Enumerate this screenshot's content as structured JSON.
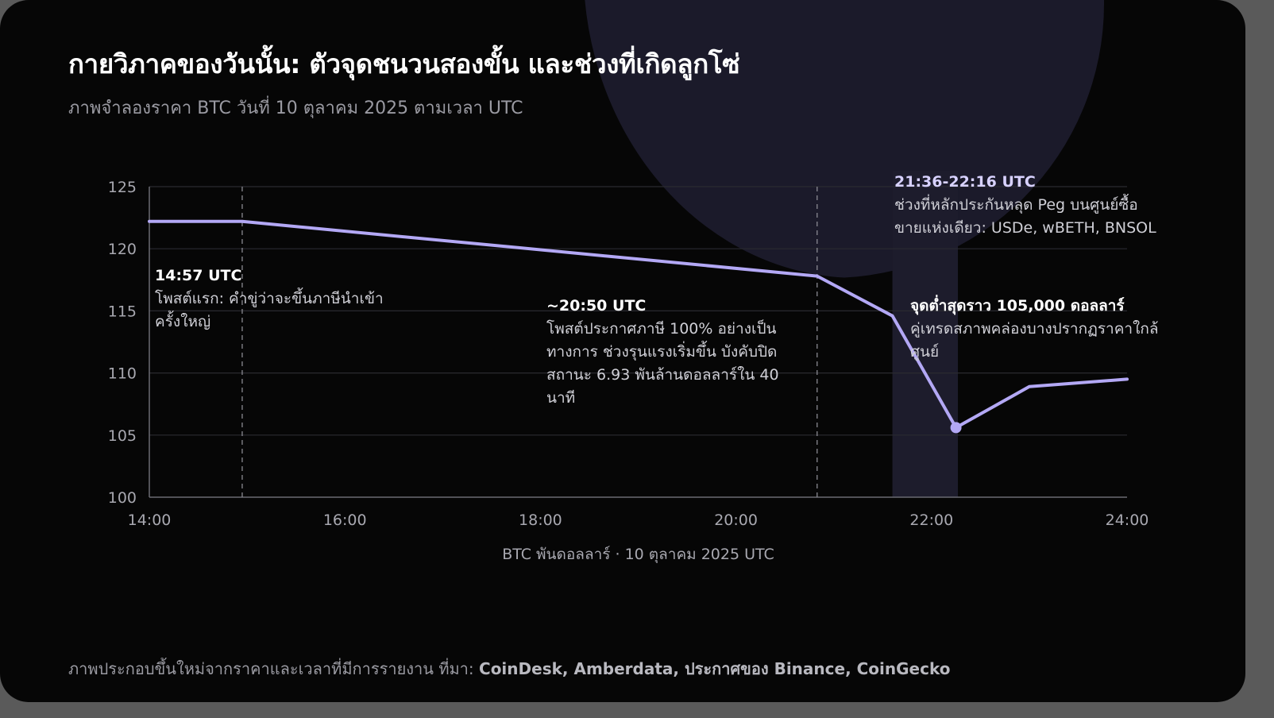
{
  "page": {
    "title": "กายวิภาคของวันนั้น: ตัวจุดชนวนสองขั้น และช่วงที่เกิดลูกโซ่",
    "subtitle": "ภาพจำลองราคา BTC วันที่ 10 ตุลาคม 2025 ตามเวลา UTC",
    "footer_prefix": "ภาพประกอบขึ้นใหม่จากราคาและเวลาที่มีการรายงาน ที่มา: ",
    "footer_sources": "CoinDesk, Amberdata, ประกาศของ Binance, CoinGecko"
  },
  "colors": {
    "background": "#060606",
    "line": "#b3a8f5",
    "highlight_band": "#1d1c2c",
    "grid": "#2a2a30"
  },
  "chart_data": {
    "type": "line",
    "title": "กายวิภาคของวันนั้น: ตัวจุดชนวนสองขั้น และช่วงที่เกิดลูกโซ่",
    "xlabel": "BTC พันดอลลาร์ · 10 ตุลาคม 2025 UTC",
    "ylabel": "",
    "x_unit": "hour (UTC)",
    "xlim": [
      14,
      24
    ],
    "ylim": [
      100,
      125
    ],
    "x_ticks": [
      14,
      16,
      18,
      20,
      22,
      24
    ],
    "x_tick_labels": [
      "14:00",
      "16:00",
      "18:00",
      "20:00",
      "22:00",
      "24:00"
    ],
    "y_ticks": [
      100,
      105,
      110,
      115,
      120,
      125
    ],
    "grid": true,
    "series": [
      {
        "points": [
          {
            "x": 14.0,
            "y": 122.2
          },
          {
            "x": 14.95,
            "y": 122.2
          },
          {
            "x": 20.83,
            "y": 117.8
          },
          {
            "x": 21.6,
            "y": 114.6
          },
          {
            "x": 22.25,
            "y": 105.6
          },
          {
            "x": 23.0,
            "y": 108.9
          },
          {
            "x": 24.0,
            "y": 109.5
          }
        ]
      }
    ],
    "highlight_band": {
      "x_start": 21.6,
      "x_end": 22.27
    },
    "vlines": [
      14.95,
      20.83
    ],
    "marker": {
      "x": 22.25,
      "y": 105.6
    },
    "annotations": [
      {
        "heading": "14:57 UTC",
        "lines": [
          "โพสต์แรก: คำขู่ว่าจะขึ้นภาษีนำเข้า",
          "ครั้งใหญ่"
        ]
      },
      {
        "heading": "~20:50 UTC",
        "lines": [
          "โพสต์ประกาศภาษี 100% อย่างเป็น",
          "ทางการ ช่วงรุนแรงเริ่มขึ้น บังคับปิด",
          "สถานะ 6.93 พันล้านดอลลาร์ใน 40",
          "นาที"
        ]
      },
      {
        "heading": "21:36-22:16 UTC",
        "lines": [
          "ช่วงที่หลักประกันหลุด Peg บนศูนย์ซื้อ",
          "ขายแห่งเดียว: USDe, wBETH, BNSOL"
        ]
      },
      {
        "heading": "จุดต่ำสุดราว 105,000 ดอลลาร์",
        "lines": [
          "คู่เทรดสภาพคล่องบางปรากฏราคาใกล้",
          "ศูนย์"
        ]
      }
    ]
  }
}
